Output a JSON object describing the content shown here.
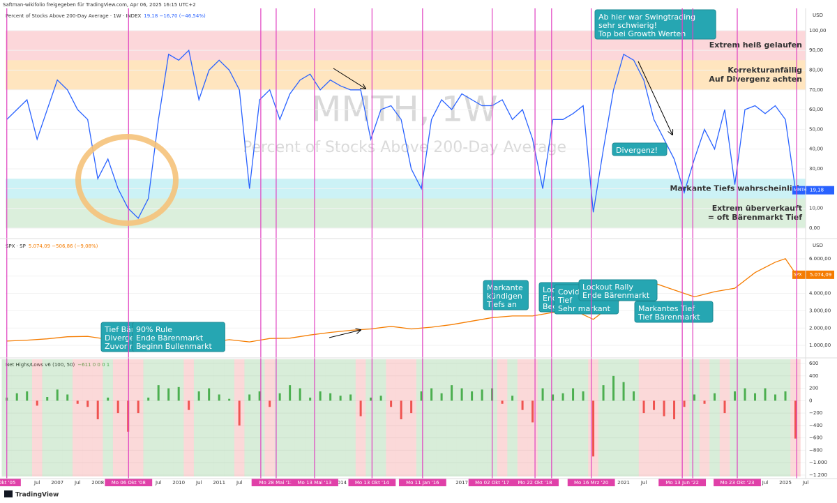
{
  "header": {
    "publisher": "Saftman-wikifolio freigegeben für TradingView.com, Apr 06, 2025 16:15 UTC+2",
    "logo": "TradingView"
  },
  "markers": [
    {
      "x": 2005.75,
      "label": "Okt '05"
    },
    {
      "x": 2008.76,
      "label": "Mo 06 Okt '08"
    },
    {
      "x": 2012.03,
      "label": "Mo 3"
    },
    {
      "x": 2012.41,
      "label": "Mo 28 Mai '12"
    },
    {
      "x": 2013.36,
      "label": "Mo 13 Mai '13"
    },
    {
      "x": 2014.78,
      "label": "Mo 13 Okt '14"
    },
    {
      "x": 2016.03,
      "label": "Mo 11 Jan '16"
    },
    {
      "x": 2017.75,
      "label": "Mo 02 Okt '17"
    },
    {
      "x": 2018.81,
      "label": "Mo 22 Okt '18"
    },
    {
      "x": 2019.22
    },
    {
      "x": 2020.2,
      "label": "Mo 16 Mrz '20"
    },
    {
      "x": 2022.45,
      "label": "Mo 13 Jun '22"
    },
    {
      "x": 2022.71
    },
    {
      "x": 2023.81,
      "label": "Mo 23 Okt '23"
    },
    {
      "x": 2025.28
    }
  ],
  "chart_data": [
    {
      "type": "line",
      "title": "Percent of Stocks Above 200-Day Average · 1W · INDEX",
      "legend_values": "19,18 −16,70 (−46,54%)",
      "watermark": [
        "MMTH, 1W",
        "Percent of Stocks Above 200-Day Average"
      ],
      "unit": "USD",
      "xlim": [
        2005.72,
        2025.5
      ],
      "ylim": [
        -4.6,
        110.2
      ],
      "yticks": [
        {
          "value": 0,
          "label": "0,00"
        },
        {
          "value": 10,
          "label": "10,00"
        },
        {
          "value": 20,
          "label": "20,00"
        },
        {
          "value": 30,
          "label": "30,00"
        },
        {
          "value": 40,
          "label": "40,00"
        },
        {
          "value": 50,
          "label": "50,00"
        },
        {
          "value": 60,
          "label": "60,00"
        },
        {
          "value": 70,
          "label": "70,00"
        },
        {
          "value": 80,
          "label": "80,00"
        },
        {
          "value": 90,
          "label": "90,00"
        },
        {
          "value": 100,
          "label": "100,00"
        }
      ],
      "x": [
        2005.75,
        2006,
        2006.25,
        2006.5,
        2006.75,
        2007,
        2007.25,
        2007.5,
        2007.75,
        2008,
        2008.25,
        2008.5,
        2008.75,
        2009,
        2009.25,
        2009.5,
        2009.75,
        2010,
        2010.25,
        2010.5,
        2010.75,
        2011,
        2011.25,
        2011.5,
        2011.75,
        2012,
        2012.25,
        2012.5,
        2012.75,
        2013,
        2013.25,
        2013.5,
        2013.75,
        2014,
        2014.25,
        2014.5,
        2014.75,
        2015,
        2015.25,
        2015.5,
        2015.75,
        2016,
        2016.25,
        2016.5,
        2016.75,
        2017,
        2017.25,
        2017.5,
        2017.75,
        2018,
        2018.25,
        2018.5,
        2018.75,
        2019,
        2019.25,
        2019.5,
        2019.75,
        2020,
        2020.25,
        2020.5,
        2020.75,
        2021,
        2021.25,
        2021.5,
        2021.75,
        2022,
        2022.25,
        2022.5,
        2022.75,
        2023,
        2023.25,
        2023.5,
        2023.75,
        2024,
        2024.25,
        2024.5,
        2024.75,
        2025,
        2025.25
      ],
      "series": [
        {
          "name": "MMTH",
          "color": "#2962ff",
          "values": [
            55,
            60,
            65,
            45,
            60,
            75,
            70,
            60,
            55,
            25,
            35,
            20,
            10,
            5,
            15,
            55,
            88,
            85,
            90,
            65,
            80,
            85,
            80,
            70,
            20,
            65,
            70,
            55,
            68,
            75,
            78,
            70,
            75,
            72,
            70,
            70,
            45,
            60,
            62,
            55,
            30,
            20,
            55,
            65,
            60,
            68,
            65,
            62,
            62,
            65,
            55,
            60,
            45,
            20,
            55,
            55,
            58,
            62,
            8,
            40,
            70,
            88,
            85,
            75,
            55,
            45,
            35,
            18,
            35,
            50,
            40,
            60,
            22,
            60,
            62,
            58,
            62,
            55,
            19.18
          ]
        }
      ],
      "last": {
        "name": "MMTH",
        "value": 19.18,
        "label": "19,18"
      },
      "zones": [
        {
          "from": 85,
          "to": 100,
          "color": "rgba(242,54,69,0.2)",
          "label_color": "#f23645",
          "label": [
            "Extrem heiß gelaufen"
          ]
        },
        {
          "from": 70,
          "to": 85,
          "color": "rgba(255,152,0,0.25)",
          "label_color": "#ff9800",
          "label": [
            "Korrekturanfällig",
            "Auf Divergenz achten"
          ]
        },
        {
          "from": 15,
          "to": 25,
          "color": "rgba(0,188,212,0.2)",
          "label_color": "#00bcd4",
          "label": [
            "Markante Tiefs wahrscheinlich"
          ]
        },
        {
          "from": 0,
          "to": 15,
          "color": "rgba(76,175,80,0.2)",
          "label_color": "#4caf50",
          "label": [
            "Extrem überverkauft",
            "= oft Bärenmarkt Tief"
          ]
        }
      ],
      "callouts": [
        {
          "lines": [
            "Ab hier war Swingtrading",
            "sehr schwierig!",
            "Top bei Growth Werten"
          ]
        },
        {
          "lines": [
            "Divergenz!"
          ]
        }
      ]
    },
    {
      "type": "line",
      "title": "SPX · SP",
      "legend_values": "5.074,09 −506,86 (−9,08%)",
      "unit": "USD",
      "xlim": [
        2005.72,
        2025.5
      ],
      "ylim": [
        320,
        7040
      ],
      "yticks": [
        {
          "value": 1000,
          "label": "1.000,00"
        },
        {
          "value": 2000,
          "label": "2.000,00"
        },
        {
          "value": 3000,
          "label": "3.000,00"
        },
        {
          "value": 4000,
          "label": "4.000,00"
        },
        {
          "value": 5000,
          "label": "5.000,00"
        },
        {
          "value": 6000,
          "label": "6.000,00"
        }
      ],
      "x": [
        2005.75,
        2006.25,
        2006.75,
        2007.25,
        2007.75,
        2008.25,
        2008.75,
        2009.25,
        2009.75,
        2010.25,
        2010.75,
        2011.25,
        2011.75,
        2012.25,
        2012.75,
        2013.25,
        2013.75,
        2014.25,
        2014.75,
        2015.25,
        2015.75,
        2016.25,
        2016.75,
        2017.25,
        2017.75,
        2018.25,
        2018.75,
        2019.25,
        2019.75,
        2020.25,
        2020.75,
        2021.25,
        2021.75,
        2022.25,
        2022.75,
        2023.25,
        2023.75,
        2024.25,
        2024.75,
        2025,
        2025.27
      ],
      "series": [
        {
          "name": "SPX",
          "color": "#f57c00",
          "values": [
            1250,
            1300,
            1380,
            1500,
            1520,
            1350,
            900,
            800,
            1060,
            1150,
            1180,
            1330,
            1200,
            1400,
            1420,
            1600,
            1750,
            1870,
            1950,
            2100,
            1950,
            2050,
            2200,
            2400,
            2600,
            2700,
            2700,
            2900,
            3050,
            2500,
            3400,
            4000,
            4600,
            4200,
            3800,
            4100,
            4300,
            5200,
            5800,
            6000,
            5074.09
          ]
        }
      ],
      "last": {
        "name": "SPX",
        "value": 5074.09,
        "label": "5.074,09"
      },
      "annotations": [
        {
          "lines": [
            "Tief Bären",
            "Divergen",
            "Zuvor m"
          ]
        },
        {
          "lines": [
            "90% Rule",
            "Ende Bärenmarkt",
            "Beginn Bullenmarkt"
          ]
        },
        {
          "lines": [
            "Markante",
            "kündigen",
            "Tiefs an"
          ]
        },
        {
          "lines": [
            "Lockout R",
            "Ende Bär",
            "Beginn B"
          ]
        },
        {
          "lines": [
            "Covid C",
            "Tief",
            "Sehr markant"
          ]
        },
        {
          "lines": [
            "Lockout Rally",
            "Ende Bärenmarkt"
          ]
        },
        {
          "lines": [
            "Markantes Tief",
            "Tief Bärenmarkt"
          ]
        }
      ]
    },
    {
      "type": "bar",
      "title": "Net Highs/Lows v6 (100, 50)",
      "legend_values": "−611 0 0 0 1",
      "xlim": [
        2005.72,
        2025.5
      ],
      "ylim": [
        -1223,
        668
      ],
      "yticks": [
        600,
        400,
        200,
        0,
        {
          "value": -200,
          "label": "−200"
        },
        {
          "value": -400,
          "label": "−400"
        },
        {
          "value": -600,
          "label": "−600"
        },
        {
          "value": -800,
          "label": "−800"
        },
        {
          "value": -1000,
          "label": "−1.000"
        },
        {
          "value": -1200,
          "label": "−1.200"
        }
      ],
      "xticks": [
        {
          "value": 2006.5,
          "label": "Jul"
        },
        2007,
        {
          "value": 2007.5,
          "label": "Jul"
        },
        2008,
        {
          "value": 2008.5,
          "label": "Jul"
        },
        {
          "value": 2009.5,
          "label": "Jul"
        },
        2010,
        {
          "value": 2010.5,
          "label": "Jul"
        },
        2011,
        {
          "value": 2011.5,
          "label": "Jul"
        },
        2014,
        2017,
        2021,
        {
          "value": 2021.5,
          "label": "Jul"
        },
        {
          "value": 2024.5,
          "label": "Jul"
        },
        2025,
        {
          "value": 2025.5,
          "label": "Jul"
        }
      ],
      "x": [
        2005.75,
        2006,
        2006.25,
        2006.5,
        2006.75,
        2007,
        2007.25,
        2007.5,
        2007.75,
        2008,
        2008.25,
        2008.5,
        2008.75,
        2009,
        2009.25,
        2009.5,
        2009.75,
        2010,
        2010.25,
        2010.5,
        2010.75,
        2011,
        2011.25,
        2011.5,
        2011.75,
        2012,
        2012.25,
        2012.5,
        2012.75,
        2013,
        2013.25,
        2013.5,
        2013.75,
        2014,
        2014.25,
        2014.5,
        2014.75,
        2015,
        2015.25,
        2015.5,
        2015.75,
        2016,
        2016.25,
        2016.5,
        2016.75,
        2017,
        2017.25,
        2017.5,
        2017.75,
        2018,
        2018.25,
        2018.5,
        2018.75,
        2019,
        2019.25,
        2019.5,
        2019.75,
        2020,
        2020.25,
        2020.5,
        2020.75,
        2021,
        2021.25,
        2021.5,
        2021.75,
        2022,
        2022.25,
        2022.5,
        2022.75,
        2023,
        2023.25,
        2023.5,
        2023.75,
        2024,
        2024.25,
        2024.5,
        2024.75,
        2025,
        2025.25
      ],
      "series": [
        {
          "name": "Net Highs/Lows",
          "color": "#4caf50",
          "negative_color": "#ef5350",
          "values": [
            50,
            120,
            150,
            -80,
            60,
            180,
            100,
            -50,
            -100,
            -300,
            50,
            -200,
            -500,
            -200,
            50,
            250,
            200,
            220,
            -150,
            150,
            200,
            100,
            30,
            -400,
            100,
            150,
            -100,
            120,
            250,
            200,
            50,
            150,
            120,
            80,
            100,
            -250,
            50,
            80,
            -100,
            -300,
            -200,
            150,
            200,
            120,
            250,
            200,
            150,
            180,
            200,
            -50,
            80,
            -150,
            -350,
            200,
            100,
            120,
            200,
            150,
            -900,
            250,
            400,
            300,
            150,
            -200,
            -150,
            -250,
            -300,
            -100,
            100,
            -50,
            120,
            -200,
            150,
            200,
            120,
            200,
            100,
            150,
            -611
          ]
        }
      ]
    }
  ]
}
